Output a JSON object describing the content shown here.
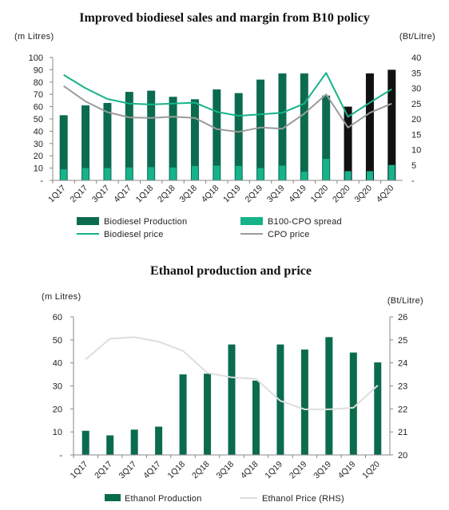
{
  "chart_data": [
    {
      "type": "bar",
      "title": "Improved biodiesel sales and margin from B10 policy",
      "left_unit": "(m Litres)",
      "right_unit": "(Bt/Litre)",
      "categories": [
        "1Q17",
        "2Q17",
        "3Q17",
        "4Q17",
        "1Q18",
        "2Q18",
        "3Q18",
        "4Q18",
        "1Q19",
        "2Q19",
        "3Q19",
        "4Q19",
        "1Q20",
        "2Q20",
        "3Q20",
        "4Q20"
      ],
      "left_ticks": [
        "100",
        "90",
        "80",
        "70",
        "60",
        "50",
        "40",
        "30",
        "20",
        "10",
        "-"
      ],
      "right_ticks": [
        "40",
        "35",
        "30",
        "25",
        "20",
        "15",
        "10",
        "5",
        "-"
      ],
      "ylim": [
        0,
        100
      ],
      "y2lim": [
        0,
        40
      ],
      "series": [
        {
          "name": "Biodiesel Production",
          "kind": "bar",
          "axis": "left",
          "color": "#0b6b4f",
          "forecast_color": "#111111",
          "forecast_from_index": 13,
          "values": [
            53,
            61,
            63,
            72,
            73,
            68,
            66,
            74,
            71,
            82,
            87,
            87,
            69,
            60,
            87,
            90
          ]
        },
        {
          "name": "B100-CPO spread",
          "kind": "bar",
          "axis": "right",
          "color": "#16b38a",
          "values": [
            3.6,
            4.0,
            4.0,
            4.2,
            4.3,
            4.2,
            4.7,
            4.8,
            4.7,
            4.0,
            4.8,
            2.8,
            7.0,
            3.0,
            3.0,
            5.0
          ]
        },
        {
          "name": "Biodiesel price",
          "kind": "line",
          "axis": "right",
          "color": "#16b38a",
          "values": [
            34.3,
            30.0,
            26.5,
            25.0,
            24.7,
            25.0,
            25.3,
            22.3,
            21.0,
            21.5,
            22.0,
            25.0,
            35.0,
            20.7,
            25.3,
            29.7
          ]
        },
        {
          "name": "CPO price",
          "kind": "line",
          "axis": "right",
          "color": "#9b9b9b",
          "values": [
            30.7,
            25.7,
            22.2,
            20.5,
            20.3,
            20.7,
            20.3,
            16.7,
            15.8,
            17.2,
            16.8,
            21.7,
            28.0,
            17.2,
            22.0,
            25.0
          ]
        }
      ]
    },
    {
      "type": "bar",
      "title": "Ethanol production and price",
      "left_unit": "(m Litres)",
      "right_unit": "(Bt/Litre)",
      "categories": [
        "1Q17",
        "2Q17",
        "3Q17",
        "4Q17",
        "1Q18",
        "2Q18",
        "3Q18",
        "4Q18",
        "1Q19",
        "2Q19",
        "3Q19",
        "4Q19",
        "1Q20"
      ],
      "left_ticks": [
        "60",
        "50",
        "40",
        "30",
        "20",
        "10",
        "-"
      ],
      "right_ticks": [
        "26",
        "25",
        "24",
        "23",
        "22",
        "21",
        "20"
      ],
      "ylim": [
        0,
        60
      ],
      "y2lim": [
        20,
        26
      ],
      "series": [
        {
          "name": "Ethanol Production",
          "kind": "bar",
          "axis": "left",
          "color": "#0b6b4f",
          "values": [
            10.5,
            8.5,
            11.0,
            12.3,
            35.0,
            35.3,
            48.0,
            32.3,
            48.0,
            45.8,
            51.2,
            44.5,
            40.2
          ]
        },
        {
          "name": "Ethanol Price (RHS)",
          "kind": "line",
          "axis": "right",
          "color": "#dedede",
          "values": [
            24.15,
            25.05,
            25.12,
            24.92,
            24.52,
            23.57,
            23.37,
            23.3,
            22.35,
            21.98,
            21.98,
            22.05,
            23.02
          ]
        }
      ]
    }
  ]
}
